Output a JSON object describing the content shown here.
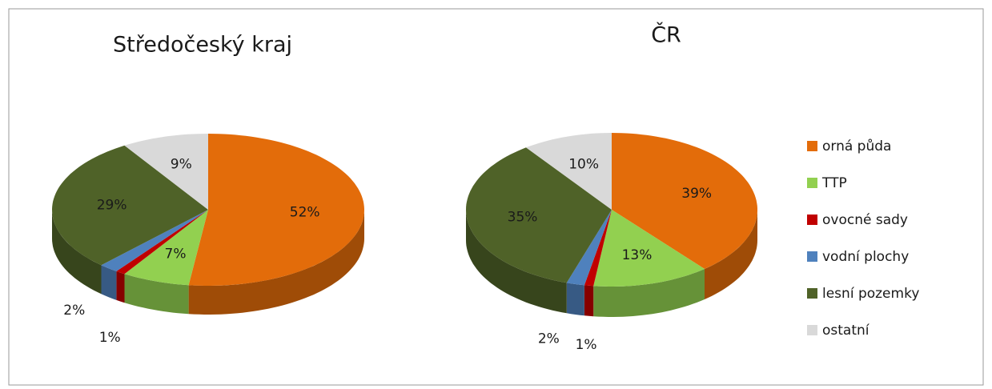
{
  "chart_data": [
    {
      "type": "pie",
      "title": "Středočeský kraj",
      "categories": [
        "orná půda",
        "TTP",
        "ovocné sady",
        "vodní plochy",
        "lesní pozemky",
        "ostatní"
      ],
      "values": [
        52,
        7,
        1,
        2,
        29,
        9
      ],
      "value_labels": [
        "52%",
        "7%",
        "1%",
        "2%",
        "29%",
        "9%"
      ],
      "colors": [
        "#e36c0a",
        "#92d050",
        "#c00000",
        "#4f81bd",
        "#4f6228",
        "#d9d9d9"
      ],
      "legend": "right"
    },
    {
      "type": "pie",
      "title": "ČR",
      "categories": [
        "orná půda",
        "TTP",
        "ovocné sady",
        "vodní plochy",
        "lesní pozemky",
        "ostatní"
      ],
      "values": [
        39,
        13,
        1,
        2,
        35,
        10
      ],
      "value_labels": [
        "39%",
        "13%",
        "1%",
        "2%",
        "35%",
        "10%"
      ],
      "colors": [
        "#e36c0a",
        "#92d050",
        "#c00000",
        "#4f81bd",
        "#4f6228",
        "#d9d9d9"
      ]
    }
  ]
}
